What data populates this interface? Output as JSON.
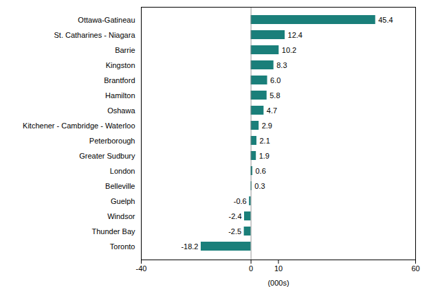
{
  "chart_data": {
    "type": "bar",
    "orientation": "horizontal",
    "categories": [
      "Ottawa-Gatineau",
      "St. Catharines - Niagara",
      "Barrie",
      "Kingston",
      "Brantford",
      "Hamilton",
      "Oshawa",
      "Kitchener - Cambridge - Waterloo",
      "Peterborough",
      "Greater Sudbury",
      "London",
      "Belleville",
      "Guelph",
      "Windsor",
      "Thunder Bay",
      "Toronto"
    ],
    "values": [
      45.4,
      12.4,
      10.2,
      8.3,
      6.0,
      5.8,
      4.7,
      2.9,
      2.1,
      1.9,
      0.6,
      0.3,
      -0.6,
      -2.4,
      -2.5,
      -18.2
    ],
    "value_labels": [
      "45.4",
      "12.4",
      "10.2",
      "8.3",
      "6.0",
      "5.8",
      "4.7",
      "2.9",
      "2.1",
      "1.9",
      "0.6",
      "0.3",
      "-0.6",
      "-2.4",
      "-2.5",
      "-18.2"
    ],
    "color": "#1a7f7a",
    "xlabel": "(000s)",
    "xlim": [
      -40,
      60
    ],
    "xticks": [
      -40,
      0,
      10,
      60
    ],
    "data_labels": true,
    "grid": false
  }
}
